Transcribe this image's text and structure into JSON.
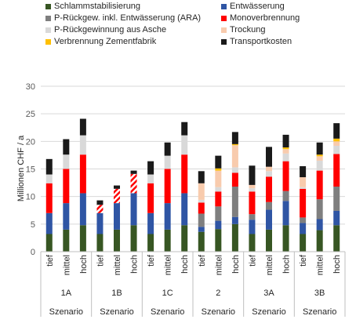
{
  "chart_data": {
    "type": "bar",
    "stacked": true,
    "ylabel": "Millionen CHF / a",
    "xlabel": "Szenario",
    "ylim": [
      0,
      30
    ],
    "yticks": [
      0,
      5,
      10,
      15,
      20,
      25,
      30
    ],
    "legend_position": "top",
    "grid": "horizontal",
    "groups": [
      {
        "name": "1A",
        "label": "Szenario"
      },
      {
        "name": "1B",
        "label": "Szenario"
      },
      {
        "name": "1C",
        "label": "Szenario"
      },
      {
        "name": "2",
        "label": "Szenario"
      },
      {
        "name": "3A",
        "label": "Szenario"
      },
      {
        "name": "3B",
        "label": "Szenario"
      }
    ],
    "categories": [
      "tief",
      "mittel",
      "hoch"
    ],
    "series": [
      {
        "name": "Schlammstabilisierung",
        "color": "#375623"
      },
      {
        "name": "Entwässerung",
        "color": "#2F55A4"
      },
      {
        "name": "P-Rückgew. inkl. Entwässerung (ARA)",
        "color": "#7F7F7F"
      },
      {
        "name": "Monoverbrennung",
        "color": "#FF0000"
      },
      {
        "name": "P-Rückgewinnung aus Asche",
        "color": "#D9D9D9"
      },
      {
        "name": "Trockung",
        "color": "#F8CBAD"
      },
      {
        "name": "Verbrennung Zementfabrik",
        "color": "#FFC000"
      },
      {
        "name": "Transportkosten",
        "color": "#1A1A1A"
      }
    ],
    "hatched_series": [
      {
        "group": "1B",
        "series": "Monoverbrennung",
        "pattern": "red-white-diagonal"
      }
    ],
    "values": [
      [
        [
          3.2,
          3.8,
          0,
          5.4,
          1.6,
          0,
          0,
          2.8
        ],
        [
          4.0,
          4.8,
          0,
          6.2,
          2.6,
          0,
          0,
          2.8
        ],
        [
          4.8,
          5.8,
          0,
          7.0,
          3.5,
          0,
          0,
          3.0
        ]
      ],
      [
        [
          3.2,
          3.8,
          0,
          1.5,
          0,
          0,
          0,
          0.8
        ],
        [
          4.0,
          4.8,
          0,
          2.6,
          0,
          0,
          0,
          0.6
        ],
        [
          4.8,
          5.8,
          0,
          3.5,
          0,
          0,
          0,
          0.6
        ]
      ],
      [
        [
          3.2,
          3.8,
          0,
          5.4,
          1.6,
          0,
          0,
          2.4
        ],
        [
          4.0,
          4.8,
          0,
          6.2,
          2.4,
          0,
          0,
          2.4
        ],
        [
          4.8,
          5.8,
          0,
          7.0,
          3.5,
          0,
          0,
          2.4
        ]
      ],
      [
        [
          3.6,
          0.9,
          2.4,
          2.0,
          0.5,
          3.0,
          0,
          2.2
        ],
        [
          4.1,
          1.5,
          2.6,
          2.7,
          0.8,
          3.0,
          0.4,
          2.3
        ],
        [
          5.0,
          1.3,
          5.5,
          2.5,
          1.0,
          4.0,
          0.2,
          2.2
        ]
      ],
      [
        [
          3.2,
          2.6,
          1.0,
          4.1,
          0.6,
          0.6,
          0,
          3.5
        ],
        [
          4.0,
          3.6,
          1.4,
          4.6,
          1.0,
          0.8,
          0,
          3.6
        ],
        [
          4.8,
          4.4,
          1.8,
          5.4,
          1.4,
          0.8,
          0.3,
          2.3
        ]
      ],
      [
        [
          3.2,
          2.0,
          1.0,
          5.2,
          0.3,
          1.8,
          0,
          2.0
        ],
        [
          3.9,
          2.0,
          3.6,
          5.2,
          1.8,
          0.8,
          0.3,
          2.2
        ],
        [
          4.8,
          2.6,
          4.4,
          5.9,
          1.5,
          0.8,
          0.5,
          2.8
        ]
      ]
    ]
  }
}
